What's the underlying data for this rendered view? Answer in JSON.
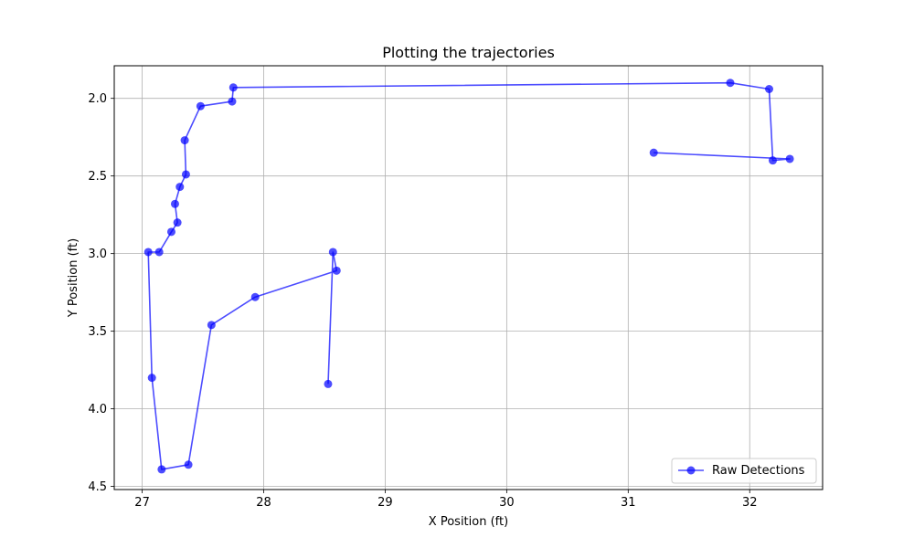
{
  "chart_data": {
    "type": "line",
    "title": "Plotting the trajectories",
    "xlabel": "X Position (ft)",
    "ylabel": "Y Position (ft)",
    "xlim": [
      26.77,
      32.6
    ],
    "ylim": [
      1.79,
      4.52
    ],
    "y_inverted": true,
    "grid": true,
    "legend_position": "bottom-right",
    "x_ticks": [
      27,
      28,
      29,
      30,
      31,
      32
    ],
    "y_ticks": [
      2.0,
      2.5,
      3.0,
      3.5,
      4.0,
      4.5
    ],
    "x_tick_labels": [
      "27",
      "28",
      "29",
      "30",
      "31",
      "32"
    ],
    "y_tick_labels": [
      "2.0",
      "2.5",
      "3.0",
      "3.5",
      "4.0",
      "4.5"
    ],
    "series": [
      {
        "name": "Raw Detections",
        "color": "#0000ff",
        "marker": "circle",
        "x": [
          28.53,
          28.57,
          28.6,
          27.93,
          27.57,
          27.38,
          27.16,
          27.08,
          27.05,
          27.14,
          27.24,
          27.29,
          27.27,
          27.31,
          27.36,
          27.35,
          27.48,
          27.74,
          27.75,
          31.84,
          32.16,
          32.19,
          32.33,
          31.21
        ],
        "y": [
          3.84,
          2.99,
          3.11,
          3.28,
          3.46,
          4.36,
          4.39,
          3.8,
          2.99,
          2.99,
          2.86,
          2.8,
          2.68,
          2.57,
          2.49,
          2.27,
          2.05,
          2.02,
          1.93,
          1.9,
          1.94,
          2.4,
          2.39,
          2.35
        ]
      }
    ]
  }
}
